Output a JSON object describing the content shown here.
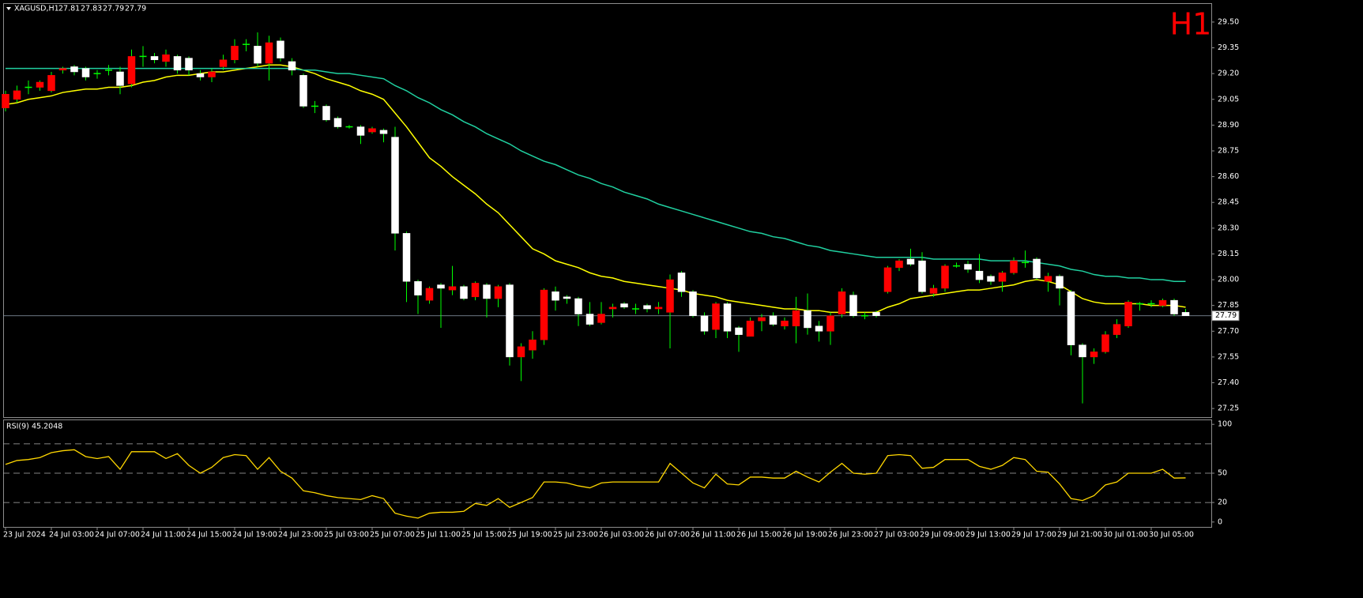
{
  "chart_data": [
    {
      "type": "candlestick",
      "title": "XAGUSD,H1",
      "header_values": [
        27.81,
        27.83,
        27.79,
        27.79
      ],
      "badge": "H1",
      "categories": [
        "23 Jul 2024",
        null,
        null,
        null,
        "24 Jul 03:00",
        null,
        null,
        null,
        "24 Jul 07:00",
        null,
        null,
        null,
        "24 Jul 11:00",
        null,
        null,
        null,
        "24 Jul 15:00",
        null,
        null,
        null,
        "24 Jul 19:00",
        null,
        null,
        null,
        "24 Jul 23:00",
        null,
        null,
        null,
        "25 Jul 03:00",
        null,
        null,
        null,
        "25 Jul 07:00",
        null,
        null,
        null,
        "25 Jul 11:00",
        null,
        null,
        null,
        "25 Jul 15:00",
        null,
        null,
        null,
        "25 Jul 19:00",
        null,
        null,
        null,
        "25 Jul 23:00",
        null,
        null,
        null,
        "26 Jul 03:00",
        null,
        null,
        null,
        "26 Jul 07:00",
        null,
        null,
        null,
        "26 Jul 11:00",
        null,
        null,
        null,
        "26 Jul 15:00",
        null,
        null,
        null,
        "26 Jul 19:00",
        null,
        null,
        null,
        "26 Jul 23:00",
        null,
        null,
        null,
        "27 Jul 03:00",
        null,
        null,
        null,
        "29 Jul 09:00",
        null,
        null,
        null,
        "29 Jul 13:00",
        null,
        null,
        null,
        "29 Jul 17:00",
        null,
        null,
        null,
        "29 Jul 21:00",
        null,
        null,
        null,
        "30 Jul 01:00",
        null,
        null,
        null,
        "30 Jul 05:00",
        null,
        null,
        null
      ],
      "open": [
        29.0,
        29.05,
        29.12,
        29.12,
        29.1,
        29.22,
        29.24,
        29.23,
        29.2,
        29.22,
        29.21,
        29.14,
        29.3,
        29.3,
        29.27,
        29.3,
        29.29,
        29.2,
        29.18,
        29.24,
        29.28,
        29.37,
        29.36,
        29.26,
        29.39,
        29.27,
        29.19,
        29.01,
        29.01,
        28.94,
        28.89,
        28.89,
        28.86,
        28.87,
        28.83,
        28.27,
        27.99,
        27.88,
        27.97,
        27.94,
        27.96,
        27.9,
        27.97,
        27.89,
        27.97,
        27.55,
        27.59,
        27.65,
        27.93,
        27.9,
        27.89,
        27.8,
        27.75,
        27.83,
        27.86,
        27.83,
        27.85,
        27.83,
        27.81,
        28.04,
        27.93,
        27.79,
        27.71,
        27.86,
        27.72,
        27.67,
        27.76,
        27.79,
        27.73,
        27.73,
        27.82,
        27.73,
        27.7,
        27.8,
        27.91,
        27.79,
        27.81,
        27.93,
        28.07,
        28.12,
        28.11,
        27.92,
        27.95,
        28.08,
        28.09,
        28.05,
        28.02,
        27.99,
        28.04,
        28.1,
        28.12,
        27.99,
        28.02,
        27.93,
        27.62,
        27.55,
        27.58,
        27.68,
        27.73,
        27.86,
        27.86,
        27.85,
        27.88,
        27.81
      ],
      "high": [
        29.1,
        29.13,
        29.16,
        29.16,
        29.21,
        29.24,
        29.25,
        29.24,
        29.22,
        29.25,
        29.24,
        29.34,
        29.36,
        29.32,
        29.34,
        29.31,
        29.3,
        29.22,
        29.23,
        29.31,
        29.4,
        29.4,
        29.44,
        29.42,
        29.41,
        29.29,
        29.2,
        29.04,
        29.02,
        28.95,
        28.9,
        28.9,
        28.89,
        28.88,
        28.89,
        28.28,
        28.0,
        27.96,
        27.98,
        28.08,
        27.97,
        27.99,
        27.98,
        27.97,
        27.98,
        27.63,
        27.7,
        27.95,
        27.96,
        27.91,
        27.9,
        27.87,
        27.87,
        27.86,
        27.87,
        27.86,
        27.86,
        27.87,
        28.03,
        28.05,
        27.94,
        27.81,
        27.87,
        27.87,
        27.73,
        27.78,
        27.8,
        27.81,
        27.78,
        27.9,
        27.92,
        27.76,
        27.81,
        27.95,
        27.93,
        27.81,
        27.82,
        28.08,
        28.12,
        28.18,
        28.16,
        27.97,
        28.09,
        28.1,
        28.11,
        28.15,
        28.03,
        28.05,
        28.13,
        28.17,
        28.13,
        28.04,
        28.03,
        27.94,
        27.63,
        27.6,
        27.7,
        27.77,
        27.88,
        27.87,
        27.88,
        27.89,
        27.89,
        27.83
      ],
      "low": [
        28.98,
        29.03,
        29.08,
        29.1,
        29.09,
        29.2,
        29.19,
        29.16,
        29.17,
        29.19,
        29.08,
        29.12,
        29.24,
        29.26,
        29.24,
        29.2,
        29.19,
        29.16,
        29.15,
        29.22,
        29.26,
        29.33,
        29.24,
        29.16,
        29.27,
        29.19,
        29.0,
        28.97,
        28.92,
        28.88,
        28.88,
        28.79,
        28.85,
        28.8,
        28.17,
        27.87,
        27.8,
        27.86,
        27.72,
        27.91,
        27.88,
        27.88,
        27.78,
        27.84,
        27.5,
        27.41,
        27.54,
        27.62,
        27.82,
        27.86,
        27.73,
        27.73,
        27.74,
        27.78,
        27.83,
        27.8,
        27.81,
        27.8,
        27.6,
        27.9,
        27.78,
        27.68,
        27.66,
        27.66,
        27.58,
        27.67,
        27.7,
        27.73,
        27.71,
        27.63,
        27.68,
        27.64,
        27.62,
        27.78,
        27.78,
        27.77,
        27.78,
        27.92,
        28.05,
        28.08,
        27.92,
        27.9,
        27.93,
        28.07,
        28.04,
        27.98,
        27.97,
        27.93,
        28.03,
        28.07,
        28.0,
        27.93,
        27.85,
        27.56,
        27.28,
        27.51,
        27.57,
        27.66,
        27.72,
        27.82,
        27.84,
        27.84,
        27.79,
        27.79
      ],
      "close": [
        29.08,
        29.1,
        29.12,
        29.15,
        29.19,
        29.23,
        29.21,
        29.18,
        29.2,
        29.22,
        29.13,
        29.3,
        29.3,
        29.28,
        29.31,
        29.22,
        29.22,
        29.18,
        29.21,
        29.28,
        29.36,
        29.37,
        29.26,
        29.38,
        29.29,
        29.22,
        29.01,
        29.01,
        28.93,
        28.89,
        28.89,
        28.84,
        28.88,
        28.85,
        28.27,
        27.99,
        27.91,
        27.95,
        27.95,
        27.96,
        27.89,
        27.98,
        27.89,
        27.96,
        27.55,
        27.61,
        27.65,
        27.94,
        27.88,
        27.89,
        27.8,
        27.74,
        27.8,
        27.84,
        27.84,
        27.83,
        27.83,
        27.84,
        28.0,
        27.93,
        27.79,
        27.7,
        27.86,
        27.7,
        27.68,
        27.76,
        27.78,
        27.74,
        27.76,
        27.82,
        27.72,
        27.7,
        27.79,
        27.93,
        27.79,
        27.79,
        27.79,
        28.07,
        28.11,
        28.09,
        27.93,
        27.95,
        28.08,
        28.08,
        28.06,
        28.0,
        27.99,
        28.04,
        28.11,
        28.1,
        28.01,
        28.02,
        27.95,
        27.62,
        27.55,
        27.58,
        27.68,
        27.74,
        27.87,
        27.86,
        27.86,
        27.88,
        27.8,
        27.79
      ],
      "up_color": "#ff0000",
      "down_color": "#ffffff",
      "wick_color": "#00ff00",
      "moving_averages": [
        {
          "color": "#ffff00",
          "values": [
            29.02,
            29.03,
            29.05,
            29.06,
            29.07,
            29.09,
            29.1,
            29.11,
            29.11,
            29.12,
            29.12,
            29.13,
            29.15,
            29.16,
            29.18,
            29.19,
            29.19,
            29.2,
            29.21,
            29.21,
            29.22,
            29.23,
            29.24,
            29.25,
            29.25,
            29.24,
            29.22,
            29.2,
            29.17,
            29.15,
            29.13,
            29.1,
            29.08,
            29.05,
            28.97,
            28.89,
            28.8,
            28.71,
            28.66,
            28.6,
            28.55,
            28.5,
            28.44,
            28.39,
            28.32,
            28.25,
            28.18,
            28.15,
            28.11,
            28.09,
            28.07,
            28.04,
            28.02,
            28.01,
            27.99,
            27.98,
            27.97,
            27.96,
            27.95,
            27.94,
            27.92,
            27.91,
            27.9,
            27.88,
            27.87,
            27.86,
            27.85,
            27.84,
            27.83,
            27.83,
            27.82,
            27.82,
            27.81,
            27.81,
            27.81,
            27.81,
            27.81,
            27.84,
            27.86,
            27.89,
            27.9,
            27.91,
            27.92,
            27.93,
            27.94,
            27.94,
            27.95,
            27.96,
            27.97,
            27.99,
            28.0,
            27.99,
            27.97,
            27.93,
            27.89,
            27.87,
            27.86,
            27.86,
            27.86,
            27.86,
            27.85,
            27.85,
            27.85,
            27.84
          ]
        },
        {
          "color": "#20d0a0",
          "values": [
            29.23,
            29.23,
            29.23,
            29.23,
            29.23,
            29.23,
            29.23,
            29.23,
            29.23,
            29.23,
            29.23,
            29.23,
            29.23,
            29.23,
            29.23,
            29.23,
            29.23,
            29.23,
            29.23,
            29.23,
            29.23,
            29.23,
            29.23,
            29.23,
            29.23,
            29.23,
            29.22,
            29.22,
            29.21,
            29.2,
            29.2,
            29.19,
            29.18,
            29.17,
            29.13,
            29.1,
            29.06,
            29.03,
            28.99,
            28.96,
            28.92,
            28.89,
            28.85,
            28.82,
            28.79,
            28.75,
            28.72,
            28.69,
            28.67,
            28.64,
            28.61,
            28.59,
            28.56,
            28.54,
            28.51,
            28.49,
            28.47,
            28.44,
            28.42,
            28.4,
            28.38,
            28.36,
            28.34,
            28.32,
            28.3,
            28.28,
            28.27,
            28.25,
            28.24,
            28.22,
            28.2,
            28.19,
            28.17,
            28.16,
            28.15,
            28.14,
            28.13,
            28.13,
            28.13,
            28.13,
            28.13,
            28.12,
            28.12,
            28.12,
            28.12,
            28.12,
            28.11,
            28.11,
            28.11,
            28.11,
            28.1,
            28.09,
            28.08,
            28.06,
            28.05,
            28.03,
            28.02,
            28.02,
            28.01,
            28.01,
            28.0,
            28.0,
            27.99,
            27.99
          ]
        }
      ],
      "current_price": 27.79,
      "ylim": [
        27.2,
        29.61
      ],
      "yticks": [
        {
          "value": 29.5,
          "label": "29.50"
        },
        29.35,
        {
          "value": 29.2,
          "label": "29.20"
        },
        29.05,
        {
          "value": 28.9,
          "label": "28.90"
        },
        28.75,
        {
          "value": 28.6,
          "label": "28.60"
        },
        28.45,
        {
          "value": 28.3,
          "label": "28.30"
        },
        28.15,
        {
          "value": 28,
          "label": "28.00"
        },
        27.85,
        {
          "value": 27.7,
          "label": "27.70"
        },
        27.55,
        {
          "value": 27.4,
          "label": "27.40"
        },
        27.25
      ]
    },
    {
      "type": "line",
      "title": "RSI(9)",
      "color": "#ffd700",
      "values": [
        59,
        63,
        64,
        66,
        71,
        73,
        74,
        67,
        65,
        67,
        54,
        72,
        72,
        72,
        65,
        70,
        58,
        50,
        56,
        66,
        69,
        68,
        54,
        66,
        52,
        45,
        32,
        30,
        27,
        25,
        24,
        23,
        27,
        24,
        9,
        6,
        4,
        9,
        10,
        10,
        11,
        19,
        17,
        24,
        15,
        20,
        25,
        41,
        41,
        40,
        37,
        35,
        40,
        41,
        41,
        41,
        41,
        41,
        60,
        50,
        40,
        35,
        49,
        39,
        38,
        46,
        46,
        45,
        45,
        52,
        46,
        41,
        51,
        60,
        50,
        49,
        50,
        68,
        69,
        68,
        55,
        56,
        64,
        64,
        64,
        57,
        54,
        58,
        66,
        64,
        52,
        51,
        39,
        24,
        22,
        27,
        38,
        41,
        50,
        50,
        50,
        54,
        45,
        45.2048
      ],
      "ylim": [
        -5,
        105
      ],
      "yticks": [
        100,
        50,
        20,
        0
      ],
      "levels": [
        20,
        50,
        80
      ]
    }
  ]
}
